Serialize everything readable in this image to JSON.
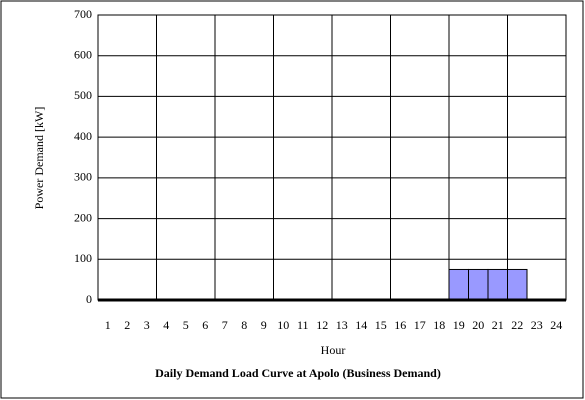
{
  "chart_data": {
    "type": "bar",
    "title": "Daily Demand Load Curve at Apolo  (Business Demand)",
    "xlabel": "Hour",
    "ylabel": "Power Demand [kW]",
    "categories": [
      "1",
      "2",
      "3",
      "4",
      "5",
      "6",
      "7",
      "8",
      "9",
      "10",
      "11",
      "12",
      "13",
      "14",
      "15",
      "16",
      "17",
      "18",
      "19",
      "20",
      "21",
      "22",
      "23",
      "24"
    ],
    "values": [
      0,
      0,
      0,
      0,
      0,
      0,
      0,
      0,
      0,
      0,
      0,
      0,
      0,
      0,
      0,
      0,
      0,
      0,
      75,
      75,
      75,
      75,
      0,
      0
    ],
    "color": "#9999ff",
    "ylim": [
      0,
      700
    ],
    "yticks": [
      0,
      100,
      200,
      300,
      400,
      500,
      600,
      700
    ],
    "grid": true
  }
}
